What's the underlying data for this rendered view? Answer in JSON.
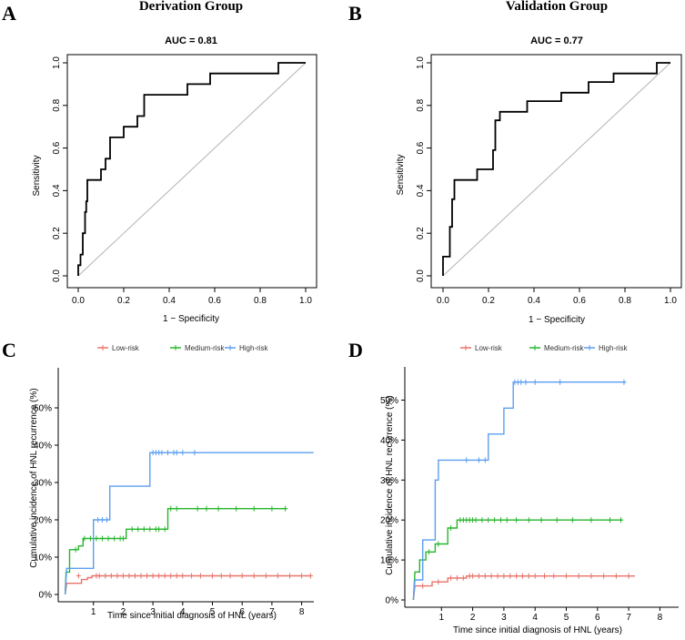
{
  "chart_data": [
    {
      "id": "A",
      "type": "line",
      "panel_label": "A",
      "title": "Derivation Group",
      "auc_label": "AUC = 0.81",
      "xlabel": "1 − Specificity",
      "ylabel": "Sensitivity",
      "xlim": [
        0,
        1
      ],
      "ylim": [
        0,
        1
      ],
      "xticks": [
        "0.0",
        "0.2",
        "0.4",
        "0.6",
        "0.8",
        "1.0"
      ],
      "yticks": [
        "0.0",
        "0.2",
        "0.4",
        "0.6",
        "0.8",
        "1.0"
      ],
      "roc_points": [
        [
          0,
          0
        ],
        [
          0,
          0.05
        ],
        [
          0.01,
          0.05
        ],
        [
          0.01,
          0.1
        ],
        [
          0.02,
          0.1
        ],
        [
          0.02,
          0.2
        ],
        [
          0.03,
          0.2
        ],
        [
          0.03,
          0.3
        ],
        [
          0.035,
          0.3
        ],
        [
          0.035,
          0.35
        ],
        [
          0.04,
          0.35
        ],
        [
          0.04,
          0.45
        ],
        [
          0.1,
          0.45
        ],
        [
          0.1,
          0.5
        ],
        [
          0.12,
          0.5
        ],
        [
          0.12,
          0.55
        ],
        [
          0.14,
          0.55
        ],
        [
          0.14,
          0.65
        ],
        [
          0.2,
          0.65
        ],
        [
          0.2,
          0.7
        ],
        [
          0.26,
          0.7
        ],
        [
          0.26,
          0.75
        ],
        [
          0.29,
          0.75
        ],
        [
          0.29,
          0.85
        ],
        [
          0.48,
          0.85
        ],
        [
          0.48,
          0.9
        ],
        [
          0.58,
          0.9
        ],
        [
          0.58,
          0.95
        ],
        [
          0.88,
          0.95
        ],
        [
          0.88,
          1
        ],
        [
          1,
          1
        ]
      ]
    },
    {
      "id": "B",
      "type": "line",
      "panel_label": "B",
      "title": "Validation Group",
      "auc_label": "AUC = 0.77",
      "xlabel": "1 − Specificity",
      "ylabel": "Sensitivity",
      "xlim": [
        0,
        1
      ],
      "ylim": [
        0,
        1
      ],
      "xticks": [
        "0.0",
        "0.2",
        "0.4",
        "0.6",
        "0.8",
        "1.0"
      ],
      "yticks": [
        "0.0",
        "0.2",
        "0.4",
        "0.6",
        "0.8",
        "1.0"
      ],
      "roc_points": [
        [
          0,
          0
        ],
        [
          0,
          0.09
        ],
        [
          0.03,
          0.09
        ],
        [
          0.03,
          0.23
        ],
        [
          0.04,
          0.23
        ],
        [
          0.04,
          0.36
        ],
        [
          0.05,
          0.36
        ],
        [
          0.05,
          0.45
        ],
        [
          0.15,
          0.45
        ],
        [
          0.15,
          0.5
        ],
        [
          0.22,
          0.5
        ],
        [
          0.22,
          0.59
        ],
        [
          0.23,
          0.59
        ],
        [
          0.23,
          0.73
        ],
        [
          0.25,
          0.73
        ],
        [
          0.25,
          0.77
        ],
        [
          0.37,
          0.77
        ],
        [
          0.37,
          0.82
        ],
        [
          0.52,
          0.82
        ],
        [
          0.52,
          0.86
        ],
        [
          0.64,
          0.86
        ],
        [
          0.64,
          0.91
        ],
        [
          0.75,
          0.91
        ],
        [
          0.75,
          0.95
        ],
        [
          0.94,
          0.95
        ],
        [
          0.94,
          1
        ],
        [
          1,
          1
        ]
      ]
    },
    {
      "id": "C",
      "type": "line",
      "panel_label": "C",
      "xlabel": "Time since initial diagnosis of HNL (years)",
      "ylabel": "Cumulative incidence of HNL recurrence (%)",
      "xlim": [
        0,
        8.4
      ],
      "ylim": [
        0,
        60
      ],
      "xticks": [
        "1",
        "2",
        "3",
        "4",
        "5",
        "6",
        "7",
        "8"
      ],
      "yticks": [
        "0%",
        "10%",
        "20%",
        "30%",
        "40%",
        "50%"
      ],
      "series": [
        {
          "name": "Low-risk",
          "color": "#e8736b",
          "steps": [
            [
              0.05,
              0
            ],
            [
              0.1,
              3
            ],
            [
              0.6,
              3
            ],
            [
              0.6,
              4
            ],
            [
              0.8,
              4
            ],
            [
              0.8,
              4.5
            ],
            [
              0.95,
              4.5
            ],
            [
              0.95,
              5
            ],
            [
              8.3,
              5
            ]
          ],
          "censor": [
            0.5,
            1.1,
            1.2,
            1.4,
            1.6,
            1.8,
            2.0,
            2.2,
            2.4,
            2.6,
            2.8,
            3.0,
            3.2,
            3.4,
            3.6,
            3.8,
            4.0,
            4.3,
            4.6,
            5.0,
            5.3,
            5.6,
            6.0,
            6.4,
            6.8,
            7.2,
            7.6,
            8.0,
            8.3
          ],
          "censor_y": 5
        },
        {
          "name": "Medium-risk",
          "color": "#27b52d",
          "steps": [
            [
              0.05,
              0
            ],
            [
              0.08,
              6
            ],
            [
              0.2,
              6
            ],
            [
              0.2,
              12
            ],
            [
              0.5,
              12
            ],
            [
              0.5,
              13
            ],
            [
              0.65,
              13
            ],
            [
              0.65,
              15
            ],
            [
              2.1,
              15
            ],
            [
              2.1,
              17.5
            ],
            [
              3.5,
              17.5
            ],
            [
              3.5,
              23
            ],
            [
              7.5,
              23
            ]
          ],
          "censor": [
            0.4,
            0.7,
            0.9,
            1.1,
            1.3,
            1.5,
            1.7,
            1.9,
            2.0,
            2.3,
            2.5,
            2.7,
            2.9,
            3.1,
            3.2,
            3.4,
            3.6,
            3.8,
            4.5,
            4.8,
            5.2,
            5.8,
            6.4,
            7.0,
            7.45
          ],
          "censor_y_map": [
            12,
            15,
            15,
            15,
            15,
            15,
            15,
            15,
            15,
            17.5,
            17.5,
            17.5,
            17.5,
            17.5,
            17.5,
            17.5,
            23,
            23,
            23,
            23,
            23,
            23,
            23,
            23,
            23
          ]
        },
        {
          "name": "High-risk",
          "color": "#5b9ef0",
          "steps": [
            [
              0.05,
              0
            ],
            [
              0.1,
              7
            ],
            [
              1.0,
              7
            ],
            [
              1.0,
              20
            ],
            [
              1.55,
              20
            ],
            [
              1.55,
              29
            ],
            [
              2.9,
              29
            ],
            [
              2.9,
              38
            ],
            [
              8.4,
              38
            ]
          ],
          "censor": [
            1.15,
            1.3,
            1.45,
            3.0,
            3.1,
            3.2,
            3.3,
            3.5,
            3.7,
            3.8,
            4.0,
            4.4
          ],
          "censor_y_map": [
            20,
            20,
            20,
            38,
            38,
            38,
            38,
            38,
            38,
            38,
            38,
            38
          ]
        }
      ],
      "legend": [
        "Low-risk",
        "Medium-risk",
        "High-risk"
      ]
    },
    {
      "id": "D",
      "type": "line",
      "panel_label": "D",
      "xlabel": "Time since initial diagnosis of HNL (years)",
      "ylabel": "Cumulative incidence of HNL recurrence (%)",
      "xlim": [
        0,
        8.4
      ],
      "ylim": [
        0,
        60
      ],
      "xticks": [
        "1",
        "2",
        "3",
        "4",
        "5",
        "6",
        "7",
        "8"
      ],
      "yticks": [
        "0%",
        "10%",
        "20%",
        "30%",
        "40%",
        "50%"
      ],
      "series": [
        {
          "name": "Low-risk",
          "color": "#e8736b",
          "steps": [
            [
              0.1,
              0
            ],
            [
              0.15,
              3.5
            ],
            [
              0.7,
              3.5
            ],
            [
              0.7,
              4.5
            ],
            [
              1.2,
              4.5
            ],
            [
              1.2,
              5.5
            ],
            [
              1.8,
              5.5
            ],
            [
              1.8,
              6
            ],
            [
              7.2,
              6
            ]
          ],
          "censor": [
            0.4,
            0.9,
            1.3,
            1.5,
            1.7,
            1.9,
            2.0,
            2.2,
            2.4,
            2.6,
            2.8,
            3.0,
            3.2,
            3.4,
            3.6,
            3.8,
            4.0,
            4.3,
            4.6,
            5.0,
            5.4,
            5.8,
            6.2,
            6.6,
            7.0
          ],
          "censor_y_map": [
            3.5,
            4.5,
            5.5,
            5.5,
            5.5,
            6,
            6,
            6,
            6,
            6,
            6,
            6,
            6,
            6,
            6,
            6,
            6,
            6,
            6,
            6,
            6,
            6,
            6,
            6,
            6
          ]
        },
        {
          "name": "Medium-risk",
          "color": "#27b52d",
          "steps": [
            [
              0.1,
              0
            ],
            [
              0.15,
              7
            ],
            [
              0.3,
              7
            ],
            [
              0.3,
              10
            ],
            [
              0.5,
              10
            ],
            [
              0.5,
              12
            ],
            [
              0.8,
              12
            ],
            [
              0.8,
              14
            ],
            [
              1.2,
              14
            ],
            [
              1.2,
              18
            ],
            [
              1.5,
              18
            ],
            [
              1.5,
              20
            ],
            [
              6.8,
              20
            ]
          ],
          "censor": [
            0.6,
            0.9,
            1.3,
            1.6,
            1.7,
            1.8,
            1.9,
            2.0,
            2.1,
            2.3,
            2.5,
            2.7,
            2.9,
            3.1,
            3.4,
            3.8,
            4.2,
            4.7,
            5.2,
            5.8,
            6.4,
            6.75
          ],
          "censor_y_map": [
            12,
            14,
            18,
            20,
            20,
            20,
            20,
            20,
            20,
            20,
            20,
            20,
            20,
            20,
            20,
            20,
            20,
            20,
            20,
            20,
            20,
            20
          ]
        },
        {
          "name": "High-risk",
          "color": "#5b9ef0",
          "steps": [
            [
              0.1,
              0
            ],
            [
              0.15,
              5
            ],
            [
              0.4,
              5
            ],
            [
              0.4,
              15
            ],
            [
              0.8,
              15
            ],
            [
              0.8,
              30
            ],
            [
              0.9,
              30
            ],
            [
              0.9,
              35
            ],
            [
              2.5,
              35
            ],
            [
              2.5,
              41.5
            ],
            [
              3.0,
              41.5
            ],
            [
              3.0,
              48
            ],
            [
              3.3,
              48
            ],
            [
              3.3,
              54.5
            ],
            [
              6.9,
              54.5
            ]
          ],
          "censor": [
            1.8,
            2.2,
            2.4,
            3.35,
            3.45,
            3.55,
            3.7,
            4.0,
            4.8,
            6.85
          ],
          "censor_y_map": [
            35,
            35,
            35,
            54.5,
            54.5,
            54.5,
            54.5,
            54.5,
            54.5,
            54.5
          ]
        }
      ],
      "legend": [
        "Low-risk",
        "Medium-risk",
        "High-risk"
      ]
    }
  ]
}
